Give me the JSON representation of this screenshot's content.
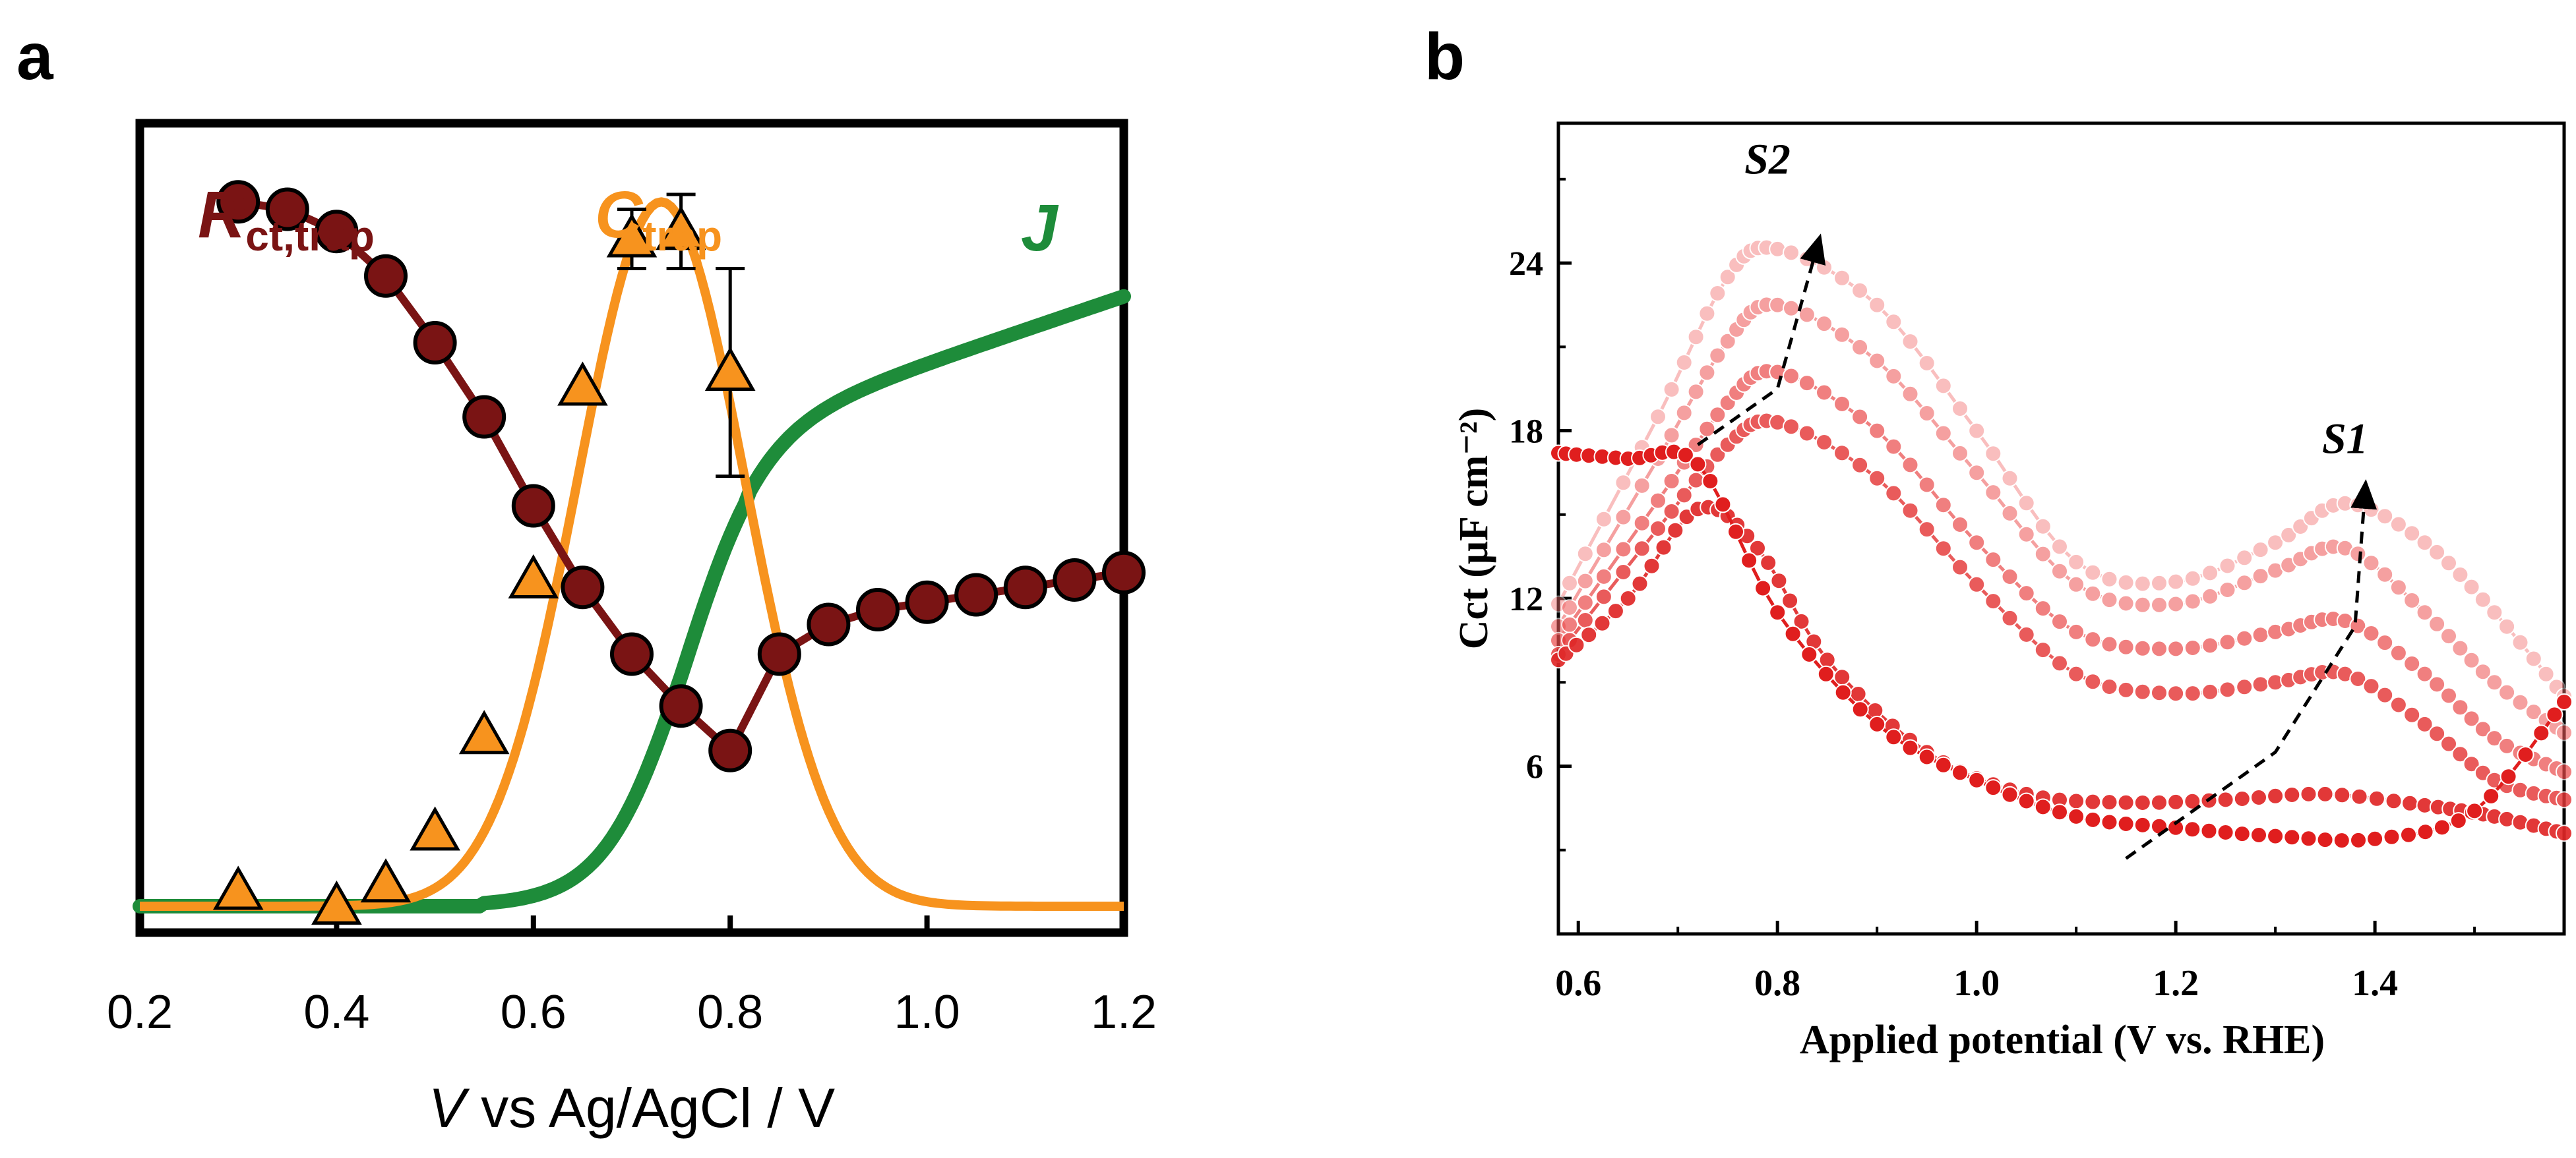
{
  "chart_data": [
    {
      "panel": "a",
      "type": "line",
      "xlabel_italic": "V",
      "xlabel_rest": " vs Ag/AgCl / V",
      "ylabel": "",
      "xlim": [
        0.2,
        1.2
      ],
      "x_ticks": [
        "0.2",
        "0.4",
        "0.6",
        "0.8",
        "1.0",
        "1.2"
      ],
      "y_ticks": [],
      "series": [
        {
          "name": "Rct,trap",
          "label_main": "R",
          "label_sub": "ct,trap",
          "color": "#7a1414",
          "marker": "circle",
          "x": [
            0.3,
            0.35,
            0.4,
            0.45,
            0.5,
            0.55,
            0.6,
            0.65,
            0.7,
            0.75,
            0.8,
            0.85,
            0.9,
            0.95,
            1.0,
            1.05,
            1.1,
            1.15,
            1.2
          ],
          "y": [
            0.95,
            0.94,
            0.91,
            0.85,
            0.76,
            0.66,
            0.54,
            0.43,
            0.34,
            0.27,
            0.21,
            0.34,
            0.38,
            0.4,
            0.41,
            0.42,
            0.43,
            0.44,
            0.45
          ]
        },
        {
          "name": "Ctrap",
          "label_main": "C",
          "label_sub": "trap",
          "color": "#f7931e",
          "marker": "triangle",
          "x": [
            0.3,
            0.4,
            0.45,
            0.5,
            0.55,
            0.6,
            0.65,
            0.7,
            0.75,
            0.8
          ],
          "y": [
            0.02,
            0.0,
            0.03,
            0.1,
            0.23,
            0.44,
            0.7,
            0.9,
            0.91,
            0.72
          ],
          "error": [
            0,
            0,
            0,
            0,
            0,
            0,
            0,
            0.04,
            0.05,
            0.14
          ],
          "fit_peak_x": 0.73,
          "fit_peak_y": 0.95,
          "fit_width": 0.085
        },
        {
          "name": "J",
          "label_main": "J",
          "color": "#1e8c3a",
          "marker": "none",
          "midpoint_x": 0.75,
          "max_y": 1.0
        }
      ]
    },
    {
      "panel": "b",
      "type": "line",
      "xlabel": "Applied potential (V vs. RHE)",
      "ylabel": "Cct (μF cm⁻²)",
      "xlim": [
        0.58,
        1.59
      ],
      "ylim": [
        0,
        29
      ],
      "x_ticks": [
        "0.6",
        "0.8",
        "1.0",
        "1.2",
        "1.4"
      ],
      "y_ticks": [
        "6",
        "12",
        "18",
        "24"
      ],
      "series": [
        {
          "name": "curve-1",
          "color": "#e01e1e",
          "opacity": 1.0,
          "x": [
            0.58,
            0.65,
            0.72,
            0.8,
            0.9,
            1.0,
            1.1,
            1.2,
            1.3,
            1.4,
            1.5,
            1.59
          ],
          "y": [
            17.2,
            17.0,
            16.8,
            11.5,
            7.5,
            5.5,
            4.2,
            3.8,
            3.5,
            3.4,
            4.4,
            8.3
          ]
        },
        {
          "name": "curve-2",
          "color": "#e02828",
          "opacity": 0.92,
          "x": [
            0.58,
            0.65,
            0.72,
            0.78,
            0.85,
            0.95,
            1.05,
            1.15,
            1.25,
            1.35,
            1.45,
            1.52,
            1.59
          ],
          "y": [
            9.8,
            12.0,
            15.2,
            13.8,
            9.8,
            6.5,
            5.0,
            4.7,
            4.8,
            5.0,
            4.6,
            4.2,
            3.6
          ]
        },
        {
          "name": "curve-3",
          "color": "#e53838",
          "opacity": 0.82,
          "x": [
            0.58,
            0.68,
            0.75,
            0.8,
            0.9,
            1.0,
            1.1,
            1.2,
            1.3,
            1.37,
            1.45,
            1.52,
            1.59
          ],
          "y": [
            10.0,
            14.5,
            17.5,
            18.3,
            16.3,
            12.5,
            9.3,
            8.6,
            9.0,
            9.3,
            7.5,
            5.5,
            4.8
          ]
        },
        {
          "name": "curve-4",
          "color": "#ea4a4a",
          "opacity": 0.7,
          "x": [
            0.58,
            0.68,
            0.75,
            0.8,
            0.9,
            1.0,
            1.1,
            1.2,
            1.3,
            1.37,
            1.45,
            1.52,
            1.59
          ],
          "y": [
            10.5,
            15.5,
            19.0,
            20.1,
            18.0,
            14.0,
            10.8,
            10.2,
            10.8,
            11.2,
            9.3,
            7.0,
            5.8
          ]
        },
        {
          "name": "curve-5",
          "color": "#ee5c5c",
          "opacity": 0.58,
          "x": [
            0.58,
            0.68,
            0.75,
            0.8,
            0.9,
            1.0,
            1.1,
            1.2,
            1.3,
            1.37,
            1.45,
            1.52,
            1.59
          ],
          "y": [
            11.0,
            17.0,
            21.2,
            22.5,
            20.5,
            16.5,
            12.5,
            11.8,
            13.0,
            13.8,
            11.5,
            9.0,
            7.2
          ]
        },
        {
          "name": "curve-6",
          "color": "#f27070",
          "opacity": 0.45,
          "x": [
            0.58,
            0.68,
            0.75,
            0.8,
            0.9,
            1.0,
            1.1,
            1.2,
            1.3,
            1.37,
            1.45,
            1.52,
            1.59
          ],
          "y": [
            11.8,
            18.5,
            23.5,
            24.5,
            22.5,
            18.0,
            13.3,
            12.6,
            14.0,
            15.4,
            14.0,
            11.5,
            8.5
          ]
        }
      ],
      "annotations": [
        {
          "text": "S2",
          "label_x": 0.79,
          "label_y": 27.2,
          "arrow": [
            [
              0.72,
              17.5
            ],
            [
              0.8,
              19.5
            ],
            [
              0.84,
              24.6
            ]
          ]
        },
        {
          "text": "S1",
          "label_x": 1.37,
          "label_y": 17.2,
          "arrow": [
            [
              1.15,
              2.7
            ],
            [
              1.3,
              6.5
            ],
            [
              1.38,
              11.0
            ],
            [
              1.39,
              15.8
            ]
          ]
        }
      ]
    }
  ],
  "panel_labels": [
    "a",
    "b"
  ]
}
